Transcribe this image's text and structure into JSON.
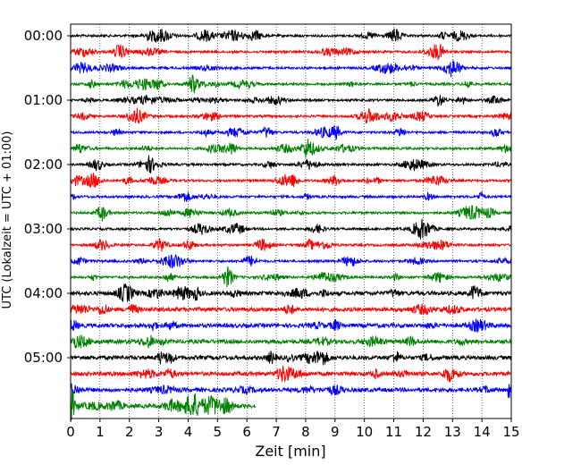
{
  "chart_data": {
    "type": "line",
    "subtype": "helicorder",
    "xlabel": "Zeit  [min]",
    "ylabel": "UTC (Lokalzeit = UTC + 01:00)",
    "xlim": [
      0,
      15
    ],
    "x_ticks": [
      "0",
      "1",
      "2",
      "3",
      "4",
      "5",
      "6",
      "7",
      "8",
      "9",
      "10",
      "11",
      "12",
      "13",
      "14",
      "15"
    ],
    "y_ticks": [
      "00:00",
      "01:00",
      "02:00",
      "03:00",
      "04:00",
      "05:00"
    ],
    "trace_interval_minutes": 15,
    "trace_count": 24,
    "last_trace_end_minute": 6.3,
    "trace_colors": [
      "#000000",
      "#ff0000",
      "#0000ff",
      "#008000"
    ],
    "grid": "vertical dotted at each minute"
  }
}
